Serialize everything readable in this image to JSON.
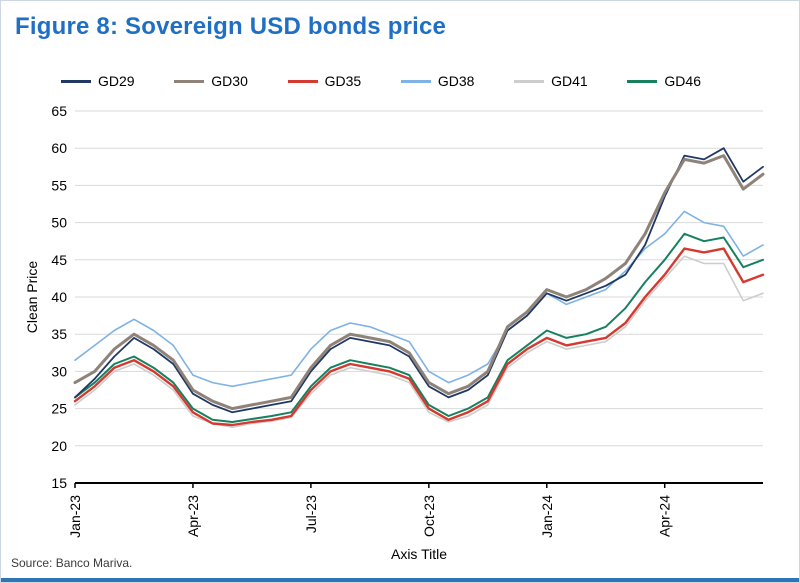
{
  "page": {
    "title": "Figure 8: Sovereign USD bonds price",
    "title_color": "#1F6FC4",
    "accent_bar_color": "#2E75B6",
    "source": "Source: Banco Mariva."
  },
  "chart_data": {
    "type": "line",
    "title": "Figure 8: Sovereign USD bonds price",
    "xlabel": "Axis Title",
    "ylabel": "Clean Price",
    "ylim": [
      15,
      65
    ],
    "ytick_step": 5,
    "grid": "horizontal",
    "legend_position": "top",
    "x_unit": "months since Jan-2023",
    "x": [
      0,
      0.5,
      1,
      1.5,
      2,
      2.5,
      3,
      3.5,
      4,
      4.5,
      5,
      5.5,
      6,
      6.5,
      7,
      7.5,
      8,
      8.5,
      9,
      9.5,
      10,
      10.5,
      11,
      11.5,
      12,
      12.5,
      13,
      13.5,
      14,
      14.5,
      15,
      15.5,
      16,
      16.5,
      17,
      17.5
    ],
    "xticks": [
      {
        "t": 0,
        "label": "Jan-23"
      },
      {
        "t": 3,
        "label": "Apr-23"
      },
      {
        "t": 6,
        "label": "Jul-23"
      },
      {
        "t": 9,
        "label": "Oct-23"
      },
      {
        "t": 12,
        "label": "Jan-24"
      },
      {
        "t": 15,
        "label": "Apr-24"
      }
    ],
    "series": [
      {
        "name": "GD29",
        "color": "#1F3864",
        "values": [
          26.5,
          29,
          32,
          34.5,
          33,
          31,
          27,
          25.5,
          24.5,
          25,
          25.5,
          26,
          30,
          33,
          34.5,
          34,
          33.5,
          32,
          28,
          26.5,
          27.5,
          29.5,
          35.5,
          37.5,
          40.5,
          39.5,
          40.5,
          41.5,
          43,
          47,
          53.5,
          59,
          58.5,
          60,
          55.5,
          57.5
        ]
      },
      {
        "name": "GD30",
        "color": "#8E8279",
        "values": [
          28.5,
          30,
          33,
          35,
          33.5,
          31.5,
          27.5,
          26,
          25,
          25.5,
          26,
          26.5,
          30.5,
          33.5,
          35,
          34.5,
          34,
          32.5,
          28.5,
          27,
          28,
          30,
          36,
          38,
          41,
          40,
          41,
          42.5,
          44.5,
          48.5,
          54,
          58.5,
          58,
          59,
          54.5,
          56.5
        ]
      },
      {
        "name": "GD35",
        "color": "#D43A2F",
        "values": [
          26,
          28,
          30.5,
          31.5,
          30,
          28,
          24.5,
          23,
          22.8,
          23.2,
          23.5,
          24,
          27.5,
          30,
          31,
          30.5,
          30,
          29,
          25,
          23.5,
          24.5,
          26,
          31,
          33,
          34.5,
          33.5,
          34,
          34.5,
          36.5,
          40,
          43,
          46.5,
          46,
          46.5,
          42,
          43
        ]
      },
      {
        "name": "GD38",
        "color": "#7FB2E5",
        "values": [
          31.5,
          33.5,
          35.5,
          37,
          35.5,
          33.5,
          29.5,
          28.5,
          28,
          28.5,
          29,
          29.5,
          33,
          35.5,
          36.5,
          36,
          35,
          34,
          30,
          28.5,
          29.5,
          31,
          35.5,
          37.5,
          40.5,
          39,
          40,
          41,
          43.5,
          46.5,
          48.5,
          51.5,
          50,
          49.5,
          45.5,
          47
        ]
      },
      {
        "name": "GD41",
        "color": "#CDCDCD",
        "values": [
          25.5,
          27.5,
          30,
          31,
          29.5,
          27.5,
          24,
          23,
          22.5,
          23,
          23.3,
          23.8,
          27,
          29.5,
          30.5,
          30,
          29.5,
          28.5,
          24.5,
          23.2,
          24,
          25.5,
          30.5,
          32.5,
          34,
          33,
          33.5,
          34,
          36,
          39.5,
          42.5,
          45.5,
          44.5,
          44.5,
          39.5,
          40.5
        ]
      },
      {
        "name": "GD46",
        "color": "#17805F",
        "values": [
          26.5,
          28.5,
          31,
          32,
          30.5,
          28.5,
          25,
          23.5,
          23.2,
          23.6,
          24,
          24.5,
          28,
          30.5,
          31.5,
          31,
          30.5,
          29.5,
          25.5,
          24,
          25,
          26.5,
          31.5,
          33.5,
          35.5,
          34.5,
          35,
          36,
          38.5,
          42,
          45,
          48.5,
          47.5,
          48,
          44,
          45
        ]
      }
    ]
  }
}
